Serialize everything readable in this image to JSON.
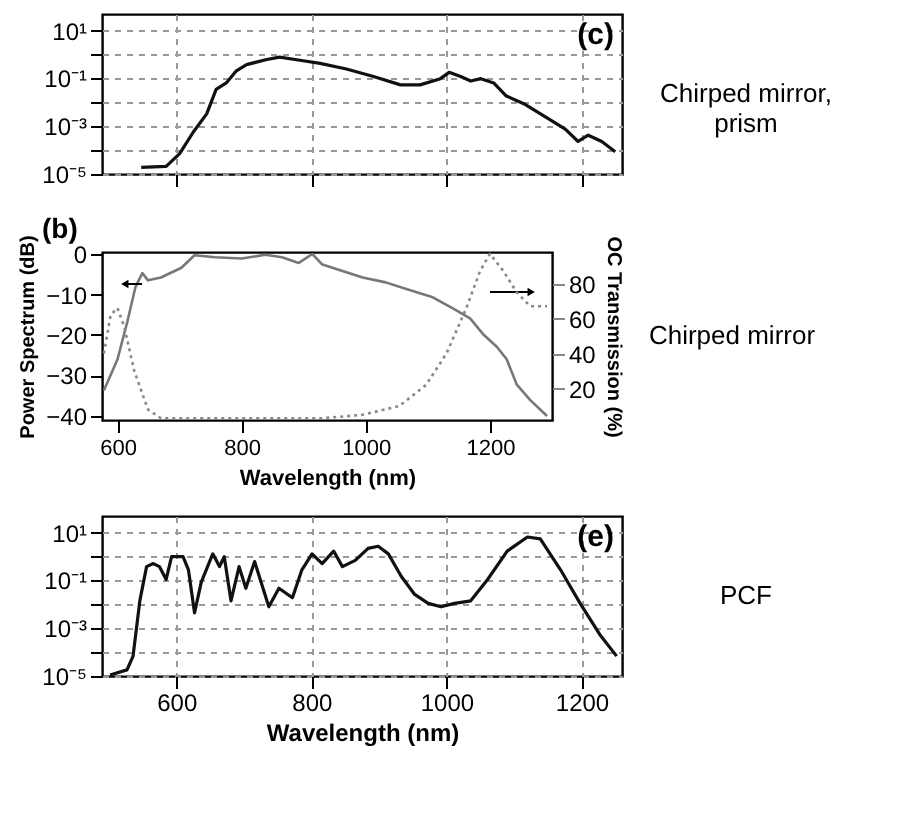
{
  "chart_data": [
    {
      "type": "line",
      "title": "(c)",
      "annotations": [
        "Chirped mirror,\nprism"
      ],
      "log": "y",
      "grid": true,
      "tick_labels": "y",
      "xlim": [
        490,
        1260
      ],
      "xticks": [
        600,
        800,
        1000,
        1200
      ],
      "ylim": [
        1e-05,
        50
      ],
      "yticks": [
        {
          "value": 1e-05,
          "label": "10⁻⁵"
        },
        {
          "value": 0.0001,
          "label": null
        },
        {
          "value": 0.001,
          "label": "10⁻³"
        },
        {
          "value": 0.01,
          "label": null
        },
        {
          "value": 0.1,
          "label": "10⁻¹"
        },
        {
          "value": 1,
          "label": null
        },
        {
          "value": 10,
          "label": "10¹"
        }
      ],
      "series": [
        {
          "color": "#111111",
          "x": [
            548,
            585,
            605,
            625,
            645,
            659,
            674,
            689,
            704,
            734,
            753,
            783,
            813,
            852,
            892,
            932,
            961,
            991,
            1004,
            1021,
            1036,
            1051,
            1070,
            1088,
            1117,
            1146,
            1176,
            1195,
            1210,
            1230,
            1250
          ],
          "values": [
            1.9e-05,
            2.1e-05,
            7.1e-05,
            0.00056,
            0.0033,
            0.035,
            0.065,
            0.21,
            0.38,
            0.62,
            0.78,
            0.58,
            0.43,
            0.25,
            0.12,
            0.054,
            0.054,
            0.098,
            0.18,
            0.12,
            0.078,
            0.098,
            0.065,
            0.019,
            0.0081,
            0.0025,
            0.00076,
            0.00023,
            0.00042,
            0.00023,
            8.5e-05
          ]
        }
      ]
    },
    {
      "type": "line",
      "title": "(b)",
      "annotations": [
        "Chirped mirror"
      ],
      "xlabel": "Wavelength (nm)",
      "ylabel": "Power Spectrum (dB)",
      "y2label": "OC Transmission (%)",
      "xlim": [
        575,
        1300
      ],
      "xticks": [
        600,
        800,
        1000,
        1200
      ],
      "ylim": [
        -41,
        0.5
      ],
      "yticks": [
        -40,
        -30,
        -20,
        -10,
        0
      ],
      "y2lim": [
        2,
        98
      ],
      "y2ticks": [
        20,
        40,
        60,
        80
      ],
      "series": [
        {
          "color": "#777777",
          "line_style": "solid",
          "x": [
            578,
            600,
            616,
            629,
            640,
            649,
            670,
            703,
            724,
            757,
            800,
            838,
            865,
            892,
            914,
            930,
            995,
            1032,
            1064,
            1108,
            1141,
            1168,
            1189,
            1211,
            1227,
            1243,
            1265,
            1292
          ],
          "values": [
            -33.7,
            -26,
            -16.6,
            -8.1,
            -4.7,
            -6.5,
            -5.8,
            -3.4,
            -0.3,
            -0.8,
            -1.1,
            -0.2,
            -0.8,
            -2.2,
            0,
            -2.6,
            -5.8,
            -7,
            -8.6,
            -10.7,
            -13.5,
            -15.9,
            -19.8,
            -22.9,
            -26,
            -32.2,
            -36.1,
            -40
          ]
        },
        {
          "color": "#888888",
          "line_style": "dotted",
          "axis": "y2",
          "x": [
            578,
            589,
            600,
            611,
            627,
            649,
            670,
            714,
            930,
            995,
            1054,
            1097,
            1130,
            1162,
            1184,
            1200,
            1222,
            1243,
            1265,
            1292
          ],
          "values": [
            40,
            62,
            66,
            55,
            30,
            8,
            3,
            3,
            3,
            5,
            10,
            22,
            40,
            66,
            87,
            97,
            87,
            75,
            67,
            67
          ]
        }
      ]
    },
    {
      "type": "line",
      "title": "(e)",
      "annotations": [
        "PCF"
      ],
      "xlabel": "Wavelength (nm)",
      "log": "y",
      "grid": true,
      "xlim": [
        490,
        1260
      ],
      "xticks": [
        600,
        800,
        1000,
        1200
      ],
      "ylim": [
        1e-05,
        50
      ],
      "yticks": [
        {
          "value": 1e-05,
          "label": "10⁻⁵"
        },
        {
          "value": 0.0001,
          "label": null
        },
        {
          "value": 0.001,
          "label": "10⁻³"
        },
        {
          "value": 0.01,
          "label": null
        },
        {
          "value": 0.1,
          "label": "10⁻¹"
        },
        {
          "value": 1,
          "label": null
        },
        {
          "value": 10,
          "label": "10¹"
        }
      ],
      "series": [
        {
          "color": "#111111",
          "x": [
            502,
            527,
            536,
            546,
            556,
            566,
            575,
            585,
            593,
            610,
            618,
            627,
            637,
            654,
            664,
            671,
            681,
            693,
            703,
            716,
            727,
            737,
            752,
            772,
            786,
            801,
            816,
            833,
            846,
            865,
            884,
            899,
            914,
            933,
            953,
            973,
            992,
            1012,
            1036,
            1061,
            1090,
            1120,
            1139,
            1169,
            1198,
            1227,
            1252
          ],
          "values": [
            1.1e-05,
            1.8e-05,
            6.8e-05,
            0.014,
            0.38,
            0.51,
            0.38,
            0.11,
            1.0,
            1.0,
            0.28,
            0.0044,
            0.085,
            1.3,
            0.38,
            1.0,
            0.014,
            0.38,
            0.047,
            0.62,
            0.063,
            0.0079,
            0.047,
            0.019,
            0.28,
            1.3,
            0.51,
            1.7,
            0.38,
            0.69,
            2.2,
            2.7,
            1.3,
            0.15,
            0.026,
            0.011,
            0.0079,
            0.011,
            0.014,
            0.11,
            1.7,
            6.6,
            5.5,
            0.28,
            0.011,
            0.00055,
            6.8e-05
          ]
        }
      ]
    }
  ]
}
